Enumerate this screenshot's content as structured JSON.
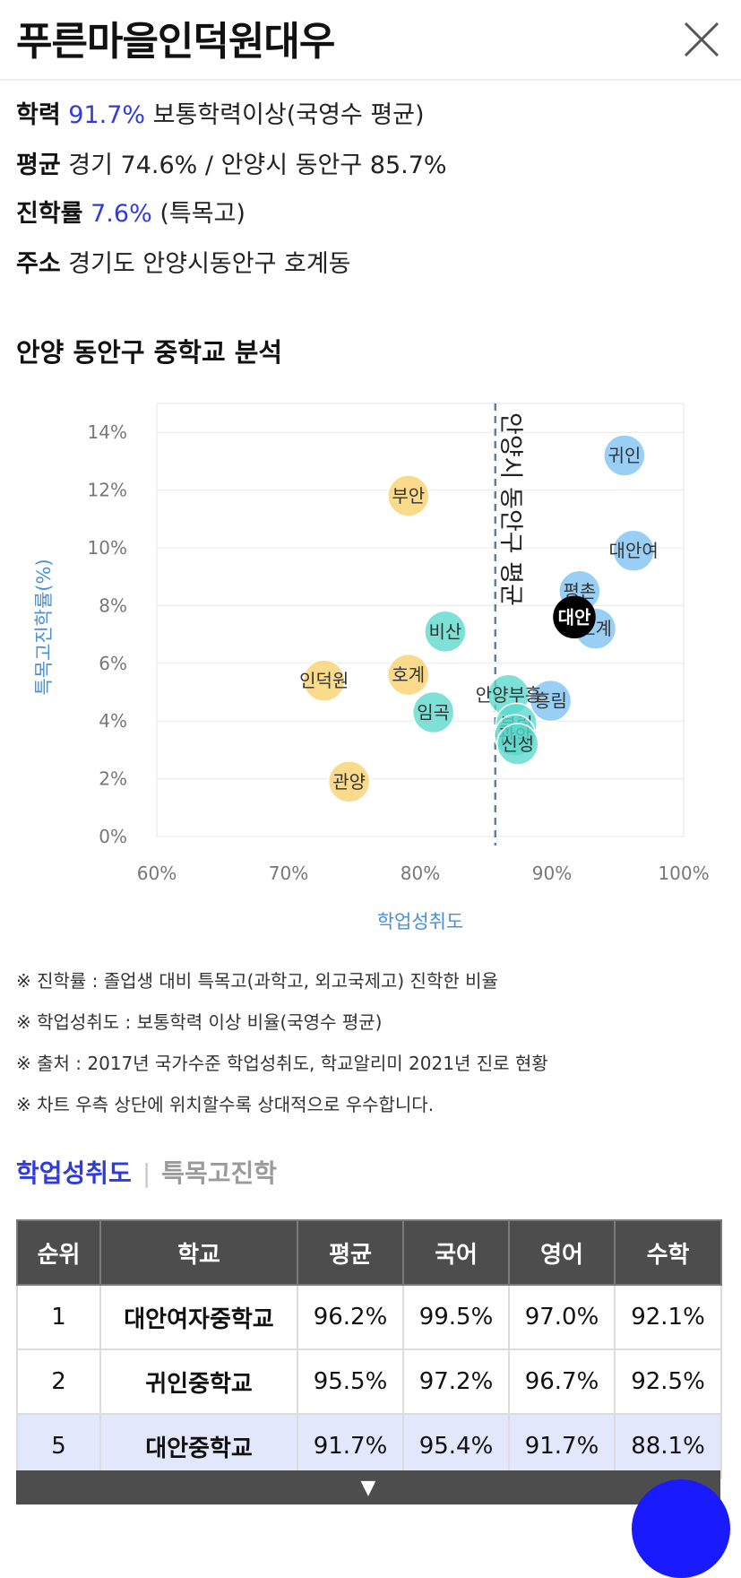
{
  "header": {
    "title": "푸른마을인덕원대우"
  },
  "info": {
    "academic_label": "학력",
    "academic_value": "91.7%",
    "academic_desc": "보통학력이상(국영수 평균)",
    "average_label": "평균",
    "average_desc": "경기 74.6% / 안양시 동안구 85.7%",
    "advance_label": "진학률",
    "advance_value": "7.6%",
    "advance_desc": "(특목고)",
    "address_label": "주소",
    "address_desc": "경기도 안양시동안구 호계동"
  },
  "section_title": "안양 동안구 중학교 분석",
  "chart_data": {
    "type": "scatter",
    "xlabel": "학업성취도",
    "ylabel": "특목고진학률(%)",
    "xlim": [
      60,
      100
    ],
    "ylim": [
      0,
      15
    ],
    "x_ticks": [
      "60%",
      "70%",
      "80%",
      "90%",
      "100%"
    ],
    "y_ticks": [
      "0%",
      "2%",
      "4%",
      "6%",
      "8%",
      "10%",
      "12%",
      "14%"
    ],
    "reference_line": {
      "x": 85.7,
      "label": "안양시 동안구 평균"
    },
    "colors": {
      "yellow": "#f9d06a",
      "teal": "#5ad8cc",
      "blue": "#7cc2f2",
      "highlight": "#000000"
    },
    "points": [
      {
        "name": "귀인",
        "x": 95.5,
        "y": 13.2,
        "color": "blue"
      },
      {
        "name": "대안여",
        "x": 96.2,
        "y": 9.9,
        "color": "blue"
      },
      {
        "name": "평촌",
        "x": 92.1,
        "y": 8.5,
        "color": "blue"
      },
      {
        "name": "호계",
        "x": 93.3,
        "y": 7.2,
        "color": "blue"
      },
      {
        "name": "흥림",
        "x": 89.9,
        "y": 4.7,
        "color": "blue"
      },
      {
        "name": "대안",
        "x": 91.7,
        "y": 7.6,
        "color": "highlight"
      },
      {
        "name": "비산",
        "x": 81.9,
        "y": 7.1,
        "color": "teal"
      },
      {
        "name": "임곡",
        "x": 81.0,
        "y": 4.3,
        "color": "teal"
      },
      {
        "name": "안양부흥",
        "x": 86.7,
        "y": 4.9,
        "color": "teal"
      },
      {
        "name": "부림",
        "x": 87.3,
        "y": 3.9,
        "color": "teal"
      },
      {
        "name": "관악",
        "x": 87.2,
        "y": 3.5,
        "color": "teal"
      },
      {
        "name": "신성",
        "x": 87.4,
        "y": 3.2,
        "color": "teal"
      },
      {
        "name": "부안",
        "x": 79.1,
        "y": 11.8,
        "color": "yellow"
      },
      {
        "name": "인덕원",
        "x": 72.7,
        "y": 5.4,
        "color": "yellow"
      },
      {
        "name": "호계",
        "x": 79.1,
        "y": 5.6,
        "color": "yellow"
      },
      {
        "name": "관양",
        "x": 74.6,
        "y": 1.9,
        "color": "yellow"
      }
    ]
  },
  "notes": [
    "※ 진학률 : 졸업생 대비 특목고(과학고, 외고국제고) 진학한 비율",
    "※ 학업성취도 : 보통학력 이상 비율(국영수 평균)",
    "※ 출처 : 2017년 국가수준 학업성취도, 학교알리미 2021년 진로 현황",
    "※ 차트 우측 상단에 위치할수록 상대적으로 우수합니다."
  ],
  "tabs": {
    "active": "학업성취도",
    "separator": "|",
    "inactive": "특목고진학"
  },
  "table": {
    "headers": [
      "순위",
      "학교",
      "평균",
      "국어",
      "영어",
      "수학"
    ],
    "rows": [
      [
        "1",
        "대안여자중학교",
        "96.2%",
        "99.5%",
        "97.0%",
        "92.1%"
      ],
      [
        "2",
        "귀인중학교",
        "95.5%",
        "97.2%",
        "96.7%",
        "92.5%"
      ],
      [
        "5",
        "대안중학교",
        "91.7%",
        "95.4%",
        "91.7%",
        "88.1%"
      ]
    ]
  },
  "more_symbol": "▼"
}
